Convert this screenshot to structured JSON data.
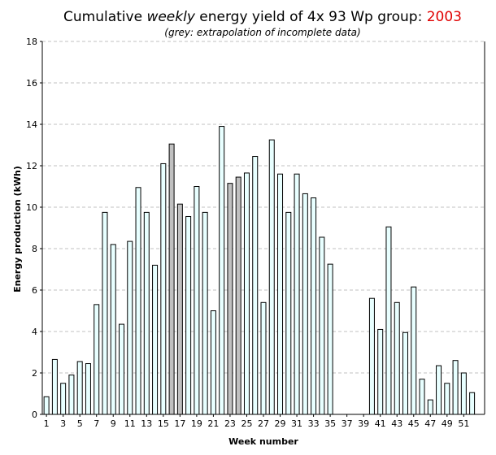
{
  "chart_data": {
    "type": "bar",
    "title_prefix": "Cumulative ",
    "title_emph": "weekly",
    "title_suffix": " energy yield of 4x 93 Wp group: ",
    "title_year": "2003",
    "subtitle": "(grey: extrapolation of incomplete data)",
    "xlabel": "Week number",
    "ylabel": "Energy production (kWh)",
    "ylim": [
      0,
      18
    ],
    "yticks": [
      0,
      2,
      4,
      6,
      8,
      10,
      12,
      14,
      16,
      18
    ],
    "xtick_labels": [
      "1",
      "3",
      "5",
      "7",
      "9",
      "11",
      "13",
      "15",
      "17",
      "19",
      "21",
      "23",
      "25",
      "27",
      "29",
      "31",
      "33",
      "35",
      "37",
      "39",
      "41",
      "43",
      "45",
      "47",
      "49",
      "51"
    ],
    "grid": "horizontal dashed",
    "colors": {
      "measured": "#e8ffff",
      "extrapolated": "#c0c0c0",
      "outline": "#000000",
      "grid": "#c0c0c0",
      "year": "#e00000"
    },
    "weeks": [
      1,
      2,
      3,
      4,
      5,
      6,
      7,
      8,
      9,
      10,
      11,
      12,
      13,
      14,
      15,
      16,
      17,
      18,
      19,
      20,
      21,
      22,
      23,
      24,
      25,
      26,
      27,
      28,
      29,
      30,
      31,
      32,
      33,
      34,
      35,
      36,
      37,
      38,
      39,
      40,
      41,
      42,
      43,
      44,
      45,
      46,
      47,
      48,
      49,
      50,
      51,
      52,
      53
    ],
    "values": [
      0.85,
      2.65,
      1.5,
      1.9,
      2.55,
      2.45,
      5.3,
      9.75,
      8.2,
      4.35,
      8.35,
      10.95,
      9.75,
      7.2,
      12.1,
      13.05,
      10.15,
      9.55,
      11.0,
      9.75,
      5.0,
      13.9,
      11.15,
      11.45,
      11.65,
      12.45,
      5.4,
      13.25,
      11.6,
      9.75,
      11.6,
      10.65,
      10.45,
      8.55,
      7.25,
      null,
      null,
      null,
      null,
      5.6,
      4.1,
      9.05,
      5.4,
      3.95,
      6.15,
      1.7,
      0.7,
      2.35,
      1.5,
      2.6,
      2.0,
      1.05,
      null
    ],
    "extrapolated": [
      16,
      17,
      23,
      24
    ]
  }
}
